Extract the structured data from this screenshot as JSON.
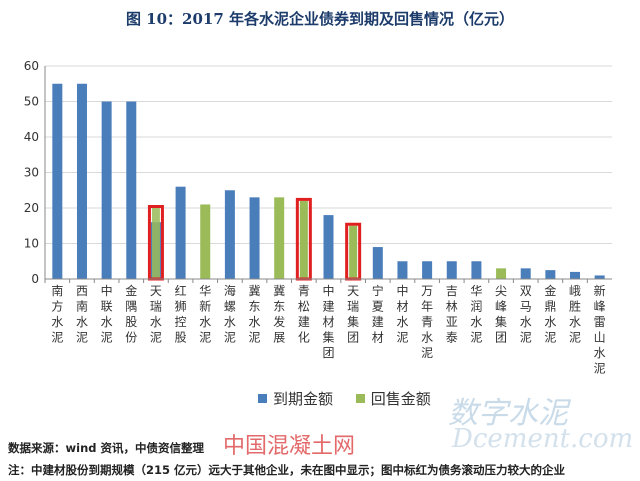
{
  "chart_data": {
    "type": "bar",
    "title": "图 10：2017 年各水泥企业债券到期及回售情况（亿元）",
    "ylim": [
      0,
      60
    ],
    "yticks": [
      0,
      10,
      20,
      30,
      40,
      50,
      60
    ],
    "categories": [
      "南方水泥",
      "西南水泥",
      "中联水泥",
      "金隅股份",
      "天瑞水泥",
      "红狮控股",
      "华新水泥",
      "海螺水泥",
      "冀东水泥",
      "冀东发展",
      "青松建化",
      "中建材集团",
      "天瑞集团",
      "宁夏建材",
      "中材水泥",
      "万年青水泥",
      "吉林亚泰",
      "华润水泥",
      "尖峰集团",
      "双马水泥",
      "金鼎水泥",
      "峨胜水泥",
      "新峰雷山水泥"
    ],
    "series": [
      {
        "name": "到期金额",
        "color": "#4a7ebb",
        "values": [
          55,
          55,
          50,
          50,
          16,
          26,
          0,
          25,
          23,
          0,
          0,
          18,
          0,
          9,
          5,
          5,
          5,
          5,
          0,
          3,
          2.5,
          2,
          1
        ]
      },
      {
        "name": "回售金额",
        "color": "#9bbb59",
        "values": [
          0,
          0,
          0,
          0,
          20,
          0,
          21,
          0,
          0,
          23,
          22,
          0,
          15,
          0,
          0,
          0,
          0,
          0,
          3,
          0,
          0,
          0,
          0
        ]
      }
    ],
    "highlighted": [
      "天瑞水泥",
      "青松建化",
      "天瑞集团"
    ],
    "highlight_color": "#e02020",
    "grid": true,
    "legend_position": "bottom"
  },
  "watermarks": {
    "brand": "数字水泥",
    "domain": "Dcement.com",
    "site": "中国混凝土网"
  },
  "footer": {
    "source": "数据来源：wind 资讯，中债资信整理",
    "note": "注：中建材股份到期规模（215 亿元）远大于其他企业，未在图中显示；图中标红为债务滚动压力较大的企业"
  }
}
